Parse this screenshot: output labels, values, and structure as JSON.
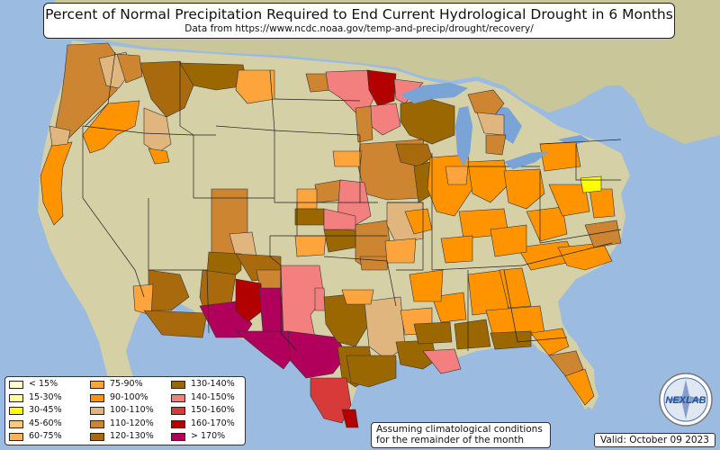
{
  "header": {
    "title": "Percent of Normal Precipitation Required to End Current Hydrological Drought in 6 Months",
    "subtitle": "Data from https://www.ncdc.noaa.gov/temp-and-precip/drought/recovery/"
  },
  "legend": {
    "items": [
      {
        "label": "< 15%",
        "color": "#ffffd4"
      },
      {
        "label": "15-30%",
        "color": "#ffff99"
      },
      {
        "label": "30-45%",
        "color": "#ffff00"
      },
      {
        "label": "45-60%",
        "color": "#fdc87d"
      },
      {
        "label": "60-75%",
        "color": "#fcb45a"
      },
      {
        "label": "75-90%",
        "color": "#fda43c"
      },
      {
        "label": "90-100%",
        "color": "#ff9400"
      },
      {
        "label": "100-110%",
        "color": "#e0b67e"
      },
      {
        "label": "110-120%",
        "color": "#cd8532"
      },
      {
        "label": "120-130%",
        "color": "#a86a0c"
      },
      {
        "label": "130-140%",
        "color": "#9a6700"
      },
      {
        "label": "140-150%",
        "color": "#f47f7f"
      },
      {
        "label": "150-160%",
        "color": "#d83a3a"
      },
      {
        "label": "160-170%",
        "color": "#b30000"
      },
      {
        "label": "> 170%",
        "color": "#b0005c"
      }
    ]
  },
  "note": {
    "line1": "Assuming climatological conditions",
    "line2": "for the remainder of the month"
  },
  "valid": "Valid: October 09 2023",
  "logo_text": "NEXLAB",
  "colors": {
    "ocean": "#9bbbe0",
    "land": "#d8d2a8",
    "lake": "#7aa4d6"
  }
}
